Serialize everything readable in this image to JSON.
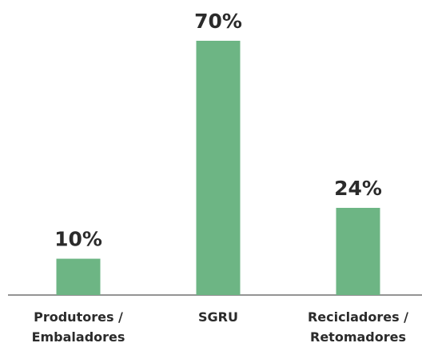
{
  "chart_data": {
    "type": "bar",
    "categories": [
      "Produtores /\nEmbaladores",
      "SGRU",
      "Recicladores /\nRetomadores"
    ],
    "values": [
      10,
      70,
      24
    ],
    "value_labels": [
      "10%",
      "70%",
      "24%"
    ],
    "color": "#6db584"
  }
}
